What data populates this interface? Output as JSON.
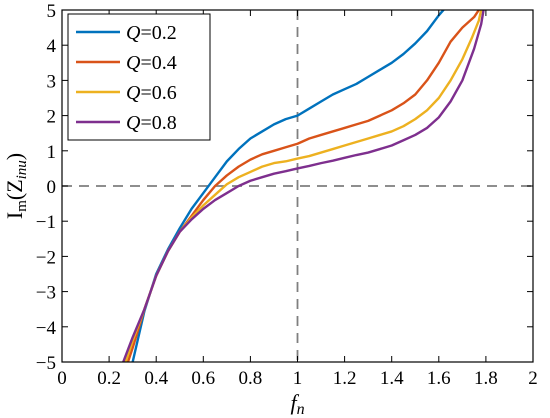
{
  "chart_data": {
    "type": "line",
    "title": "",
    "xlabel": {
      "main": "f",
      "sub": "n"
    },
    "ylabel": {
      "main": "I",
      "sub": "m",
      "rest": "(Z",
      "sub2": "inu",
      "close": ")"
    },
    "xlim": [
      0,
      2
    ],
    "ylim": [
      -5,
      5
    ],
    "xticks": [
      0,
      0.2,
      0.4,
      0.6,
      0.8,
      1,
      1.2,
      1.4,
      1.6,
      1.8,
      2
    ],
    "xtick_labels": [
      "0",
      "0.2",
      "0.4",
      "0.6",
      "0.8",
      "1",
      "1.2",
      "1.4",
      "1.6",
      "1.8",
      "2"
    ],
    "yticks": [
      -5,
      -4,
      -3,
      -2,
      -1,
      0,
      1,
      2,
      3,
      4,
      5
    ],
    "ytick_labels": [
      "−5",
      "−4",
      "−3",
      "−2",
      "−1",
      "0",
      "1",
      "2",
      "3",
      "4",
      "5"
    ],
    "grid": false,
    "reference_lines": [
      {
        "orientation": "horizontal",
        "value": 0,
        "style": "dashed"
      },
      {
        "orientation": "vertical",
        "value": 1,
        "style": "dashed"
      }
    ],
    "legend": {
      "placement": "top-left"
    },
    "series": [
      {
        "name": "Q=0.2",
        "label_var": "Q",
        "label_val": "=0.2",
        "color": "#0072BD",
        "points": [
          [
            0.3,
            -5.0
          ],
          [
            0.35,
            -3.55
          ],
          [
            0.4,
            -2.5
          ],
          [
            0.45,
            -1.8
          ],
          [
            0.5,
            -1.2
          ],
          [
            0.55,
            -0.65
          ],
          [
            0.6,
            -0.2
          ],
          [
            0.65,
            0.25
          ],
          [
            0.7,
            0.7
          ],
          [
            0.75,
            1.05
          ],
          [
            0.8,
            1.35
          ],
          [
            0.85,
            1.55
          ],
          [
            0.9,
            1.75
          ],
          [
            0.95,
            1.9
          ],
          [
            1.0,
            2.0
          ],
          [
            1.05,
            2.2
          ],
          [
            1.1,
            2.4
          ],
          [
            1.15,
            2.6
          ],
          [
            1.2,
            2.75
          ],
          [
            1.25,
            2.9
          ],
          [
            1.3,
            3.1
          ],
          [
            1.35,
            3.3
          ],
          [
            1.4,
            3.5
          ],
          [
            1.45,
            3.75
          ],
          [
            1.5,
            4.05
          ],
          [
            1.55,
            4.4
          ],
          [
            1.6,
            4.85
          ],
          [
            1.62,
            5.0
          ]
        ]
      },
      {
        "name": "Q=0.4",
        "label_var": "Q",
        "label_val": "=0.4",
        "color": "#D95319",
        "points": [
          [
            0.28,
            -5.0
          ],
          [
            0.3,
            -4.6
          ],
          [
            0.35,
            -3.5
          ],
          [
            0.4,
            -2.55
          ],
          [
            0.45,
            -1.85
          ],
          [
            0.5,
            -1.3
          ],
          [
            0.55,
            -0.85
          ],
          [
            0.6,
            -0.4
          ],
          [
            0.65,
            0.0
          ],
          [
            0.7,
            0.3
          ],
          [
            0.75,
            0.55
          ],
          [
            0.8,
            0.75
          ],
          [
            0.85,
            0.9
          ],
          [
            0.9,
            1.0
          ],
          [
            0.95,
            1.1
          ],
          [
            1.0,
            1.2
          ],
          [
            1.05,
            1.35
          ],
          [
            1.1,
            1.45
          ],
          [
            1.15,
            1.55
          ],
          [
            1.2,
            1.65
          ],
          [
            1.25,
            1.75
          ],
          [
            1.3,
            1.85
          ],
          [
            1.35,
            2.0
          ],
          [
            1.4,
            2.15
          ],
          [
            1.45,
            2.35
          ],
          [
            1.5,
            2.6
          ],
          [
            1.55,
            3.0
          ],
          [
            1.6,
            3.5
          ],
          [
            1.65,
            4.1
          ],
          [
            1.7,
            4.5
          ],
          [
            1.75,
            4.8
          ],
          [
            1.77,
            5.0
          ]
        ]
      },
      {
        "name": "Q=0.6",
        "label_var": "Q",
        "label_val": "=0.6",
        "color": "#EDB120",
        "points": [
          [
            0.27,
            -5.0
          ],
          [
            0.3,
            -4.4
          ],
          [
            0.35,
            -3.5
          ],
          [
            0.4,
            -2.55
          ],
          [
            0.45,
            -1.85
          ],
          [
            0.5,
            -1.3
          ],
          [
            0.55,
            -0.9
          ],
          [
            0.6,
            -0.55
          ],
          [
            0.65,
            -0.25
          ],
          [
            0.7,
            0.05
          ],
          [
            0.75,
            0.25
          ],
          [
            0.8,
            0.4
          ],
          [
            0.85,
            0.55
          ],
          [
            0.9,
            0.65
          ],
          [
            0.95,
            0.7
          ],
          [
            1.0,
            0.78
          ],
          [
            1.05,
            0.85
          ],
          [
            1.1,
            0.95
          ],
          [
            1.15,
            1.05
          ],
          [
            1.2,
            1.15
          ],
          [
            1.25,
            1.25
          ],
          [
            1.3,
            1.35
          ],
          [
            1.35,
            1.45
          ],
          [
            1.4,
            1.55
          ],
          [
            1.45,
            1.7
          ],
          [
            1.5,
            1.9
          ],
          [
            1.55,
            2.15
          ],
          [
            1.6,
            2.5
          ],
          [
            1.65,
            3.0
          ],
          [
            1.7,
            3.6
          ],
          [
            1.74,
            4.2
          ],
          [
            1.77,
            4.7
          ],
          [
            1.78,
            5.0
          ]
        ]
      },
      {
        "name": "Q=0.8",
        "label_var": "Q",
        "label_val": "=0.8",
        "color": "#7E2F8E",
        "points": [
          [
            0.26,
            -5.0
          ],
          [
            0.3,
            -4.3
          ],
          [
            0.35,
            -3.5
          ],
          [
            0.4,
            -2.55
          ],
          [
            0.45,
            -1.85
          ],
          [
            0.5,
            -1.3
          ],
          [
            0.55,
            -0.95
          ],
          [
            0.6,
            -0.65
          ],
          [
            0.65,
            -0.4
          ],
          [
            0.7,
            -0.2
          ],
          [
            0.75,
            0.0
          ],
          [
            0.8,
            0.15
          ],
          [
            0.85,
            0.25
          ],
          [
            0.9,
            0.35
          ],
          [
            0.95,
            0.42
          ],
          [
            1.0,
            0.5
          ],
          [
            1.05,
            0.57
          ],
          [
            1.1,
            0.65
          ],
          [
            1.15,
            0.72
          ],
          [
            1.2,
            0.8
          ],
          [
            1.25,
            0.88
          ],
          [
            1.3,
            0.95
          ],
          [
            1.35,
            1.05
          ],
          [
            1.4,
            1.15
          ],
          [
            1.45,
            1.3
          ],
          [
            1.5,
            1.45
          ],
          [
            1.55,
            1.65
          ],
          [
            1.6,
            1.95
          ],
          [
            1.65,
            2.4
          ],
          [
            1.7,
            3.0
          ],
          [
            1.75,
            3.9
          ],
          [
            1.78,
            4.6
          ],
          [
            1.79,
            5.0
          ]
        ]
      }
    ]
  }
}
